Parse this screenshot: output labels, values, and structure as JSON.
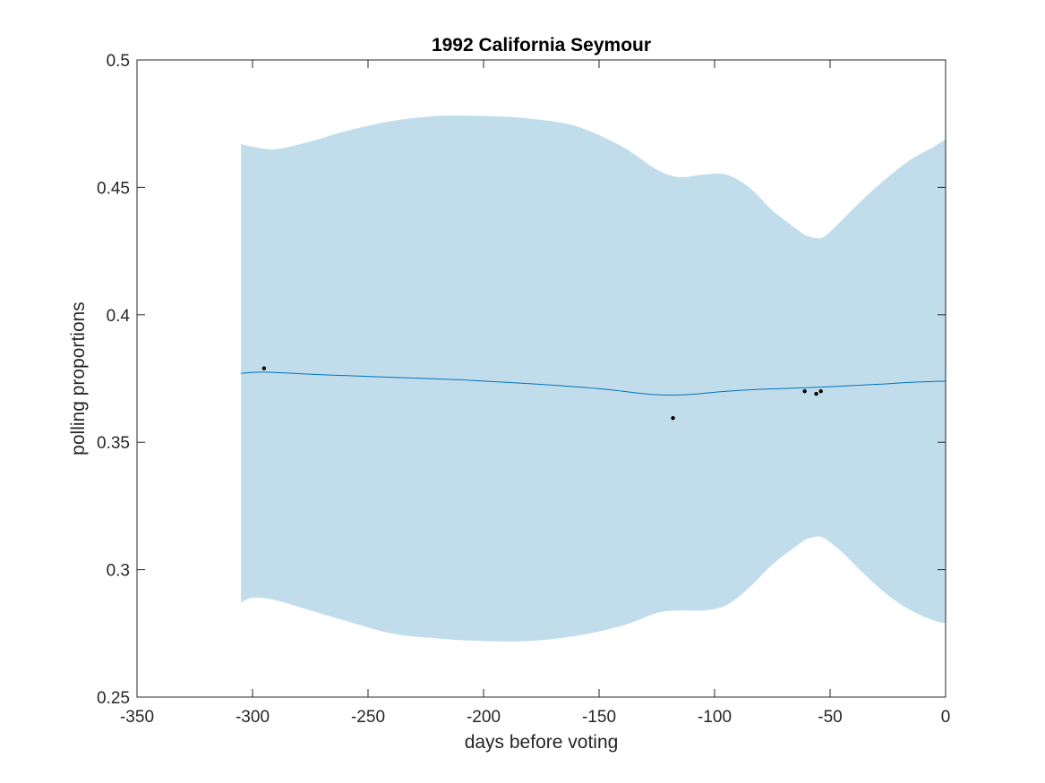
{
  "chart_data": {
    "type": "line",
    "title": "1992 California Seymour",
    "xlabel": "days before voting",
    "ylabel": "polling proportions",
    "xlim": [
      -350,
      0
    ],
    "ylim": [
      0.25,
      0.5
    ],
    "xticks": [
      -350,
      -300,
      -250,
      -200,
      -150,
      -100,
      -50,
      0
    ],
    "yticks": [
      0.25,
      0.3,
      0.35,
      0.4,
      0.45,
      0.5
    ],
    "xtick_labels": [
      "-350",
      "-300",
      "-250",
      "-200",
      "-150",
      "-100",
      "-50",
      "0"
    ],
    "ytick_labels": [
      "0.25",
      "0.3",
      "0.35",
      "0.4",
      "0.45",
      "0.5"
    ],
    "grid": false,
    "box": true,
    "series": [
      {
        "kind": "band",
        "color": "#c1ddeb",
        "x": [
          -305,
          -300,
          -290,
          -275,
          -260,
          -240,
          -220,
          -200,
          -180,
          -160,
          -140,
          -125,
          -115,
          -105,
          -95,
          -85,
          -75,
          -65,
          -60,
          -55,
          -52,
          -45,
          -35,
          -25,
          -15,
          -5,
          0
        ],
        "upper": [
          0.467,
          0.466,
          0.465,
          0.468,
          0.472,
          0.476,
          0.478,
          0.478,
          0.477,
          0.474,
          0.466,
          0.457,
          0.454,
          0.455,
          0.455,
          0.45,
          0.441,
          0.434,
          0.431,
          0.43,
          0.431,
          0.437,
          0.446,
          0.454,
          0.461,
          0.466,
          0.469
        ],
        "lower": [
          0.287,
          0.289,
          0.288,
          0.284,
          0.28,
          0.275,
          0.273,
          0.272,
          0.272,
          0.274,
          0.278,
          0.283,
          0.284,
          0.284,
          0.286,
          0.293,
          0.302,
          0.309,
          0.312,
          0.313,
          0.312,
          0.307,
          0.298,
          0.29,
          0.284,
          0.28,
          0.279
        ]
      },
      {
        "kind": "line",
        "color": "#0072bd",
        "x": [
          -305,
          -295,
          -270,
          -240,
          -210,
          -180,
          -150,
          -130,
          -120,
          -110,
          -95,
          -80,
          -60,
          -45,
          -30,
          -15,
          0
        ],
        "y": [
          0.377,
          0.3775,
          0.3765,
          0.3755,
          0.3745,
          0.373,
          0.371,
          0.369,
          0.3685,
          0.3688,
          0.37,
          0.3708,
          0.3714,
          0.372,
          0.3727,
          0.3735,
          0.374
        ]
      },
      {
        "kind": "scatter",
        "color": "#000000",
        "x": [
          -295,
          -118,
          -61,
          -56,
          -54
        ],
        "y": [
          0.379,
          0.3595,
          0.37,
          0.369,
          0.37
        ]
      }
    ]
  }
}
